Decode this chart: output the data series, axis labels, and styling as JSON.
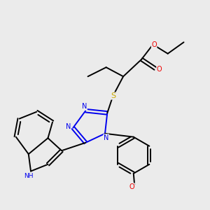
{
  "background_color": "#ebebeb",
  "atom_colors": {
    "C": "#000000",
    "N": "#0000ee",
    "O": "#ee0000",
    "S": "#ccaa00",
    "H": "#000000"
  },
  "bond_color": "#000000",
  "lw": 1.4,
  "fs": 7.0
}
